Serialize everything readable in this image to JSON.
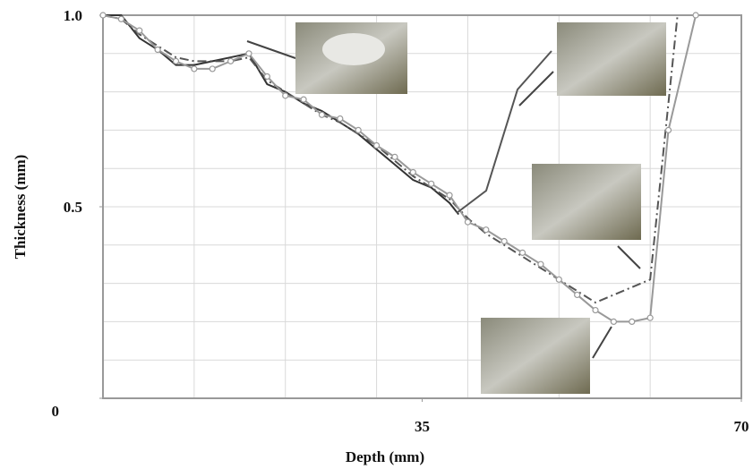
{
  "chart_data": {
    "type": "line",
    "x_label": "Depth (mm)",
    "y_label": "Thickness (mm)",
    "xlim": [
      0,
      70
    ],
    "xticks": [
      35,
      70
    ],
    "ylim": [
      0,
      1
    ],
    "yticks": [
      {
        "value": 1,
        "label": "1.0"
      },
      {
        "value": 0.5,
        "label": "0.5"
      },
      0
    ],
    "x_grid": [
      10,
      20,
      30,
      40,
      50,
      60
    ],
    "y_grid": [
      0.1,
      0.2,
      0.3,
      0.4,
      0.5,
      0.6,
      0.7,
      0.8,
      0.9
    ],
    "grid": true,
    "series": [
      {
        "color": "#333333",
        "dash": "solid",
        "markers": false,
        "x": [
          0,
          2,
          4,
          6,
          8,
          10,
          12,
          14,
          16,
          18,
          20,
          22,
          24,
          26,
          28,
          30,
          32,
          34,
          36,
          38,
          39
        ],
        "values": [
          1.0,
          1.0,
          0.94,
          0.91,
          0.87,
          0.87,
          0.88,
          0.89,
          0.9,
          0.82,
          0.8,
          0.77,
          0.75,
          0.72,
          0.69,
          0.65,
          0.61,
          0.57,
          0.55,
          0.51,
          0.48
        ]
      },
      {
        "color": "#555555",
        "dash": "dashdot",
        "markers": false,
        "x": [
          0,
          2,
          4,
          6,
          8,
          10,
          12,
          14,
          16,
          18,
          20,
          22,
          24,
          26,
          28,
          30,
          32,
          34,
          36,
          38,
          40,
          42,
          44,
          46,
          48,
          50,
          52,
          54,
          60,
          63
        ],
        "values": [
          1.0,
          0.99,
          0.95,
          0.92,
          0.89,
          0.88,
          0.88,
          0.88,
          0.89,
          0.83,
          0.8,
          0.77,
          0.74,
          0.72,
          0.69,
          0.66,
          0.62,
          0.58,
          0.55,
          0.52,
          0.47,
          0.43,
          0.4,
          0.37,
          0.34,
          0.31,
          0.28,
          0.25,
          0.31,
          1.0
        ]
      },
      {
        "color": "#999999",
        "dash": "solid",
        "markers": true,
        "x": [
          0,
          2,
          4,
          6,
          8,
          10,
          12,
          14,
          16,
          18,
          20,
          22,
          24,
          26,
          28,
          30,
          32,
          34,
          36,
          38,
          40,
          42,
          44,
          46,
          48,
          50,
          52,
          54,
          56,
          58,
          60,
          62,
          65
        ],
        "values": [
          1.0,
          0.99,
          0.96,
          0.91,
          0.88,
          0.86,
          0.86,
          0.88,
          0.9,
          0.84,
          0.79,
          0.78,
          0.74,
          0.73,
          0.7,
          0.66,
          0.63,
          0.59,
          0.56,
          0.53,
          0.46,
          0.44,
          0.41,
          0.38,
          0.35,
          0.31,
          0.27,
          0.23,
          0.2,
          0.2,
          0.21,
          0.7,
          1.0
        ]
      }
    ]
  }
}
